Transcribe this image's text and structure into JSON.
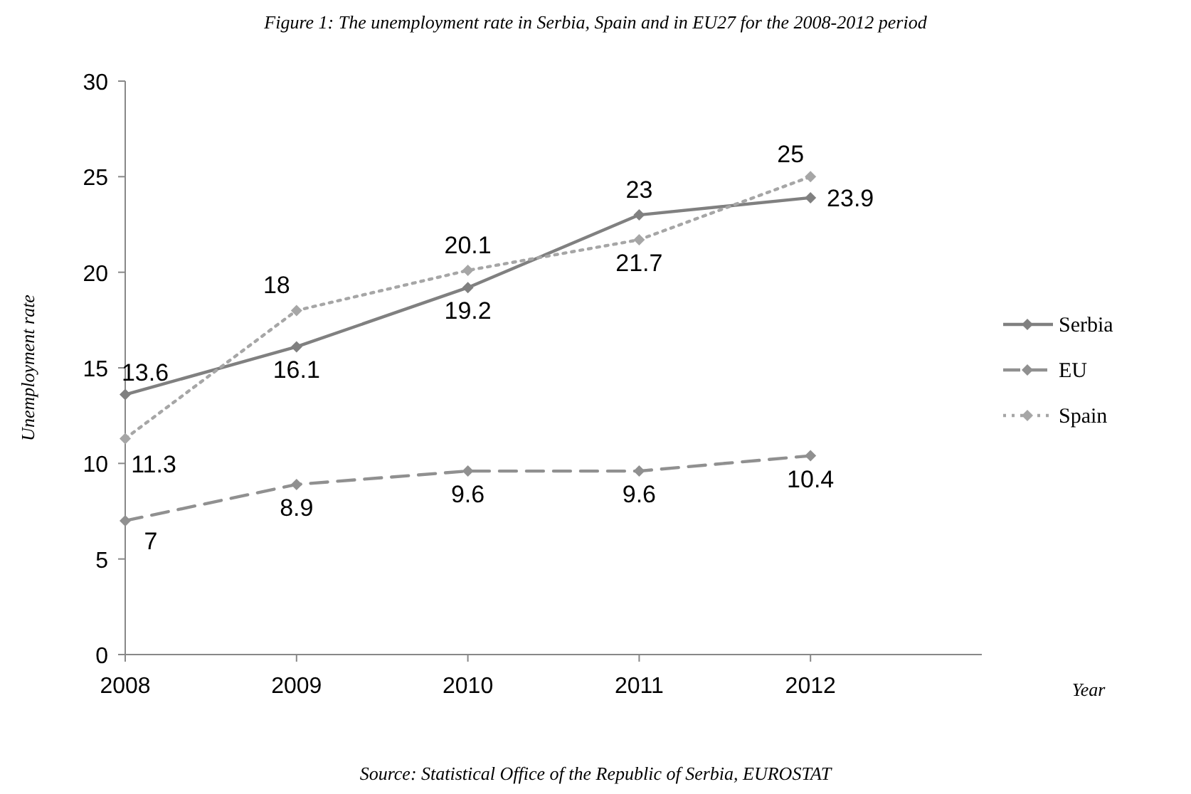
{
  "chart_data": {
    "type": "line",
    "title": "Figure 1: The  unemployment rate in Serbia, Spain and in EU27 for the 2008-2012 period",
    "xlabel": "Year",
    "ylabel": "Unemployment rate",
    "annotations": [
      "Source: Statistical Office of the Republic of Serbia, EUROSTAT"
    ],
    "x": [
      2008,
      2009,
      2010,
      2011,
      2012
    ],
    "series": [
      {
        "name": "Serbia",
        "color": "#808080",
        "line_style": "solid",
        "values": [
          13.6,
          16.1,
          19.2,
          23,
          23.9
        ]
      },
      {
        "name": "EU",
        "color": "#909090",
        "line_style": "dashed",
        "values": [
          7,
          8.9,
          9.6,
          9.6,
          10.4
        ]
      },
      {
        "name": "Spain",
        "color": "#a6a6a6",
        "line_style": "dotted",
        "values": [
          11.3,
          18,
          20.1,
          21.7,
          25
        ]
      }
    ],
    "xlim": [
      2008,
      2013
    ],
    "xticks": [
      2008,
      2009,
      2010,
      2011,
      2012
    ],
    "ylim": [
      0,
      30
    ],
    "yticks": [
      0,
      5,
      10,
      15,
      20,
      25,
      30
    ],
    "marker": "diamond",
    "legend": "right",
    "data_labels": true,
    "grid": false
  }
}
